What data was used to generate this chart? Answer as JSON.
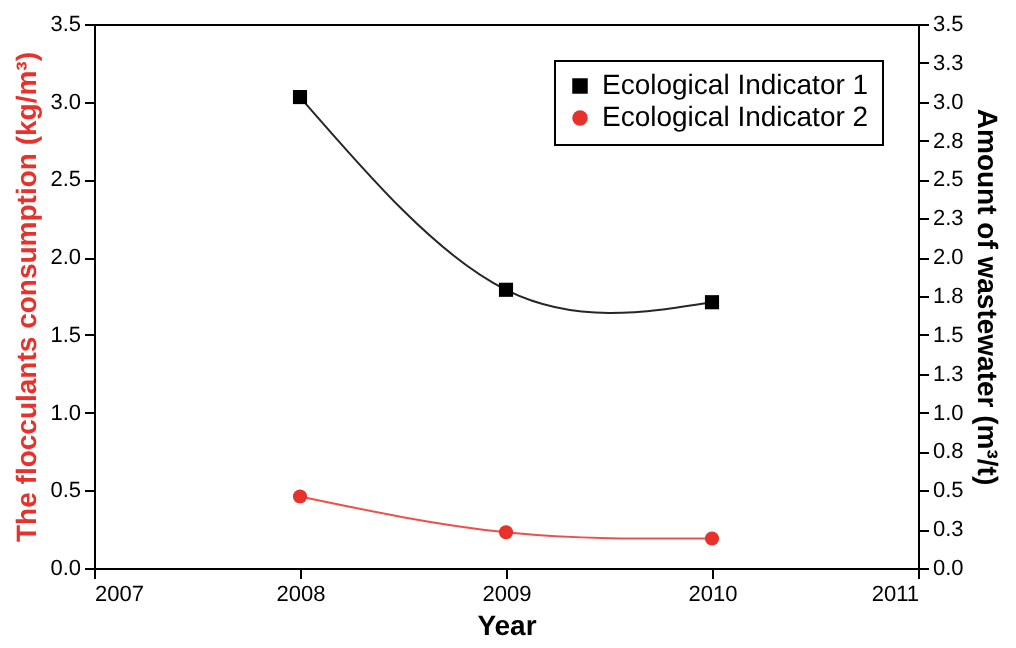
{
  "chart_data": {
    "type": "line",
    "xlabel": "Year",
    "ylabel": "The flocculants consumption (kg/m³)",
    "y2label": "Amount of wastewater (m³/t)",
    "x": [
      2008,
      2009,
      2010
    ],
    "series": [
      {
        "name": "Ecological Indicator 1",
        "color": "#000000",
        "values": [
          3.03,
          1.79,
          1.71
        ],
        "axis": "y2",
        "marker": "square"
      },
      {
        "name": "Ecological Indicator 2",
        "color": "#e8312a",
        "values": [
          0.46,
          0.23,
          0.19
        ],
        "axis": "y",
        "marker": "circle"
      }
    ],
    "xlim": [
      2007,
      2011
    ],
    "xticks": [
      2007,
      2008,
      2009,
      2010,
      2011
    ],
    "ylim": [
      0,
      3.5
    ],
    "yticks": [
      {
        "value": 0,
        "label": "0.0"
      },
      0.5,
      {
        "value": 1,
        "label": "1.0"
      },
      1.5,
      {
        "value": 2,
        "label": "2.0"
      },
      2.5,
      {
        "value": 3,
        "label": "3.0"
      },
      3.5
    ],
    "y2lim": [
      0,
      3.5
    ],
    "y2ticks": [
      {
        "value": 0,
        "label": "0.0"
      },
      {
        "value": 0.25,
        "label": "0.3"
      },
      0.5,
      {
        "value": 0.75,
        "label": "0.8"
      },
      {
        "value": 1,
        "label": "1.0"
      },
      {
        "value": 1.25,
        "label": "1.3"
      },
      1.5,
      {
        "value": 1.75,
        "label": "1.8"
      },
      {
        "value": 2,
        "label": "2.0"
      },
      {
        "value": 2.25,
        "label": "2.3"
      },
      2.5,
      {
        "value": 2.75,
        "label": "2.8"
      },
      {
        "value": 3,
        "label": "3.0"
      },
      {
        "value": 3.25,
        "label": "3.3"
      },
      3.5
    ],
    "grid": false,
    "legend": "top right",
    "line_style": "solid"
  }
}
